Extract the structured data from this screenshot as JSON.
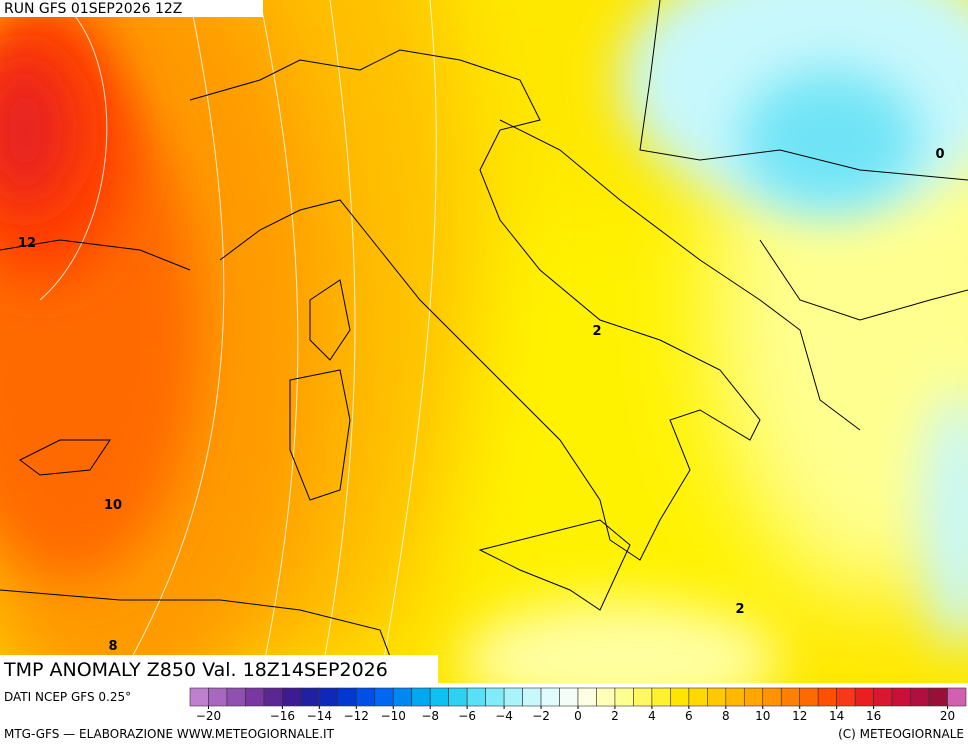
{
  "header": {
    "run": "RUN GFS 01SEP2026 12Z"
  },
  "map": {
    "title": "TMP ANOMALY Z850 Val. 18Z14SEP2026",
    "contour_labels": [
      12,
      10,
      8,
      2,
      2,
      0
    ]
  },
  "colorbar": {
    "source": "DATI NCEP GFS 0.25°",
    "range": [
      -21,
      21
    ],
    "ticks": [
      {
        "value": -20,
        "label": "−20"
      },
      {
        "value": -16,
        "label": "−16"
      },
      {
        "value": -14,
        "label": "−14"
      },
      {
        "value": -12,
        "label": "−12"
      },
      {
        "value": -10,
        "label": "−10"
      },
      {
        "value": -8,
        "label": "−8"
      },
      {
        "value": -6,
        "label": "−6"
      },
      {
        "value": -4,
        "label": "−4"
      },
      {
        "value": -2,
        "label": "−2"
      },
      0,
      2,
      4,
      6,
      8,
      10,
      12,
      14,
      16,
      20
    ],
    "colors": [
      "#c080d0",
      "#a868c0",
      "#9050b0",
      "#7838a0",
      "#5a2890",
      "#3c1c90",
      "#2020a0",
      "#1028b8",
      "#0038d0",
      "#0050e8",
      "#0068f0",
      "#0088f0",
      "#00a8f0",
      "#10c0f0",
      "#30d0f0",
      "#58e0f6",
      "#80ecf8",
      "#a8f4fa",
      "#c8f8fc",
      "#e0fcfe",
      "#f4fef6",
      "#fefee0",
      "#ffffb8",
      "#ffff90",
      "#fff860",
      "#fff030",
      "#ffe600",
      "#ffd800",
      "#ffc800",
      "#ffb800",
      "#ffa600",
      "#ff9400",
      "#ff8000",
      "#ff6a00",
      "#ff5000",
      "#f83818",
      "#e82020",
      "#d81830",
      "#c81038",
      "#b01040",
      "#981038",
      "#d060b0"
    ]
  },
  "footer": {
    "left": "MTG-GFS — ELABORAZIONE WWW.METEOGIORNALE.IT",
    "right": "(C) METEOGIORNALE"
  }
}
